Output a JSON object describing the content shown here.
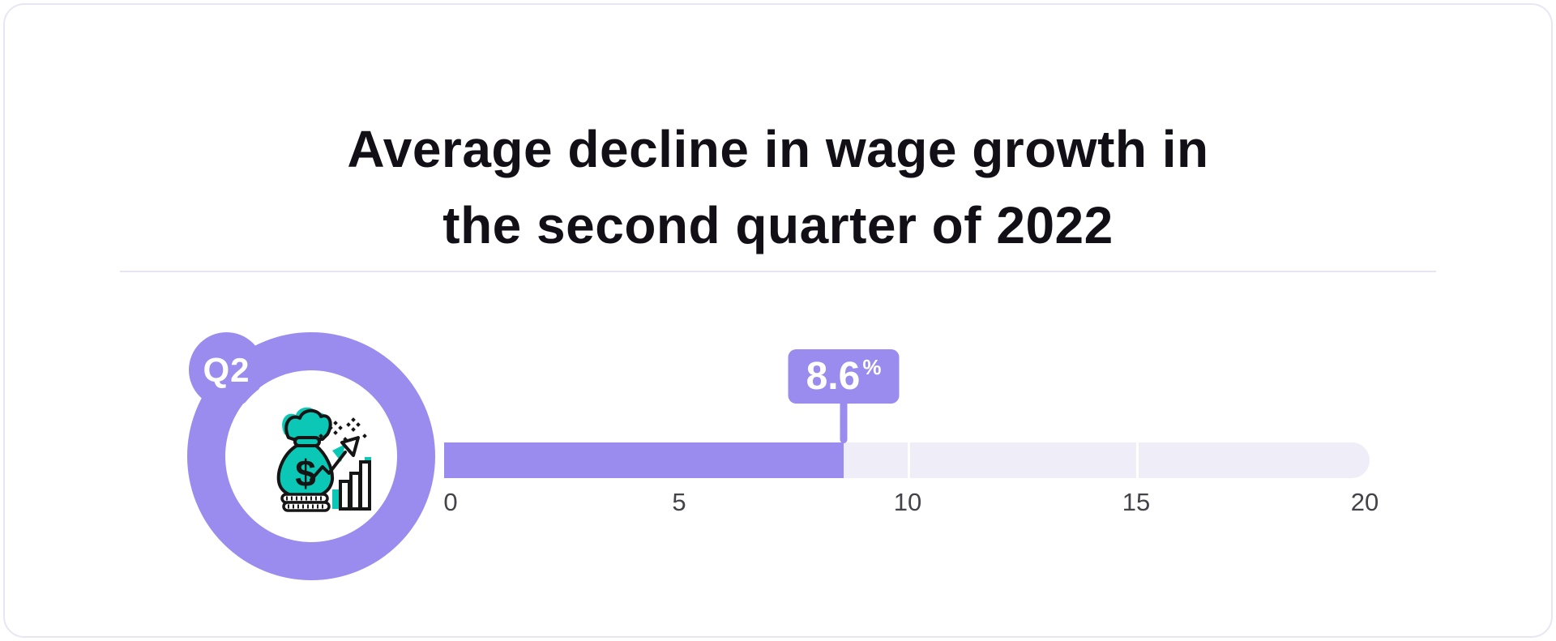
{
  "title": {
    "line1": "Average decline in wage growth in",
    "line2": "the second quarter of 2022"
  },
  "badge": {
    "label": "Q2",
    "icon": "money-bag-growth-icon",
    "icon_currency": "$"
  },
  "chart_data": {
    "type": "bar",
    "orientation": "horizontal",
    "title": "Average decline in wage growth in the second quarter of 2022",
    "categories": [
      "Q2"
    ],
    "series": [
      {
        "name": "Q2",
        "value": 8.6
      }
    ],
    "value_label": "8.6",
    "unit": "%",
    "axis": {
      "min": 0,
      "max": 20,
      "tick_values": [
        0,
        5,
        10,
        15,
        20
      ],
      "tick_labels": [
        "0",
        "5",
        "10",
        "15",
        "20"
      ]
    },
    "legend": "none",
    "grid": "off",
    "xlabel": "",
    "ylabel": ""
  },
  "colors": {
    "accent": "#998cee",
    "track": "#efedf8",
    "teal": "#0bc7b5",
    "ink": "#121016",
    "axis": "#454349",
    "border": "#e9e6f4",
    "divider": "#e6e3f2"
  }
}
